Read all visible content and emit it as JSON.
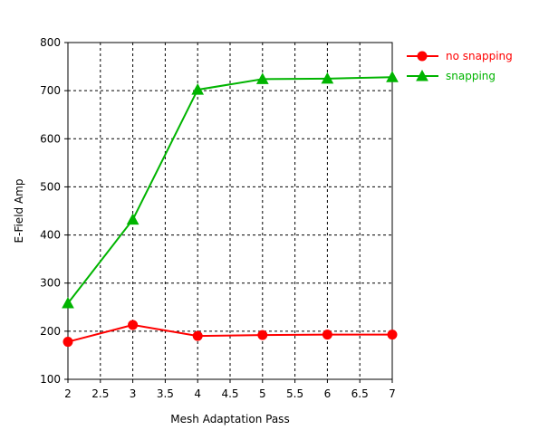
{
  "chart_data": {
    "type": "line",
    "title": "",
    "xlabel": "Mesh Adaptation Pass",
    "ylabel": "E-Field Amp",
    "xlim": [
      2,
      7
    ],
    "ylim": [
      100,
      800
    ],
    "xticks": [
      2,
      2.5,
      3,
      3.5,
      4,
      4.5,
      5,
      5.5,
      6,
      6.5,
      7
    ],
    "xtick_labels": [
      "2",
      "2.5",
      "3",
      "3.5",
      "4",
      "4.5",
      "5",
      "5.5",
      "6",
      "6.5",
      "7"
    ],
    "yticks": [
      100,
      200,
      300,
      400,
      500,
      600,
      700,
      800
    ],
    "ytick_labels": [
      "100",
      "200",
      "300",
      "400",
      "500",
      "600",
      "700",
      "800"
    ],
    "grid": true,
    "legend_position": "top-right outside",
    "series": [
      {
        "name": "no snapping",
        "color": "#ff0000",
        "marker": "circle",
        "x": [
          2,
          3,
          4,
          5,
          6,
          7
        ],
        "y": [
          178,
          213,
          190,
          192,
          193,
          193
        ]
      },
      {
        "name": "snapping",
        "color": "#00b400",
        "marker": "triangle",
        "x": [
          2,
          3,
          4,
          5,
          6,
          7
        ],
        "y": [
          258,
          432,
          702,
          724,
          725,
          728
        ]
      }
    ]
  }
}
